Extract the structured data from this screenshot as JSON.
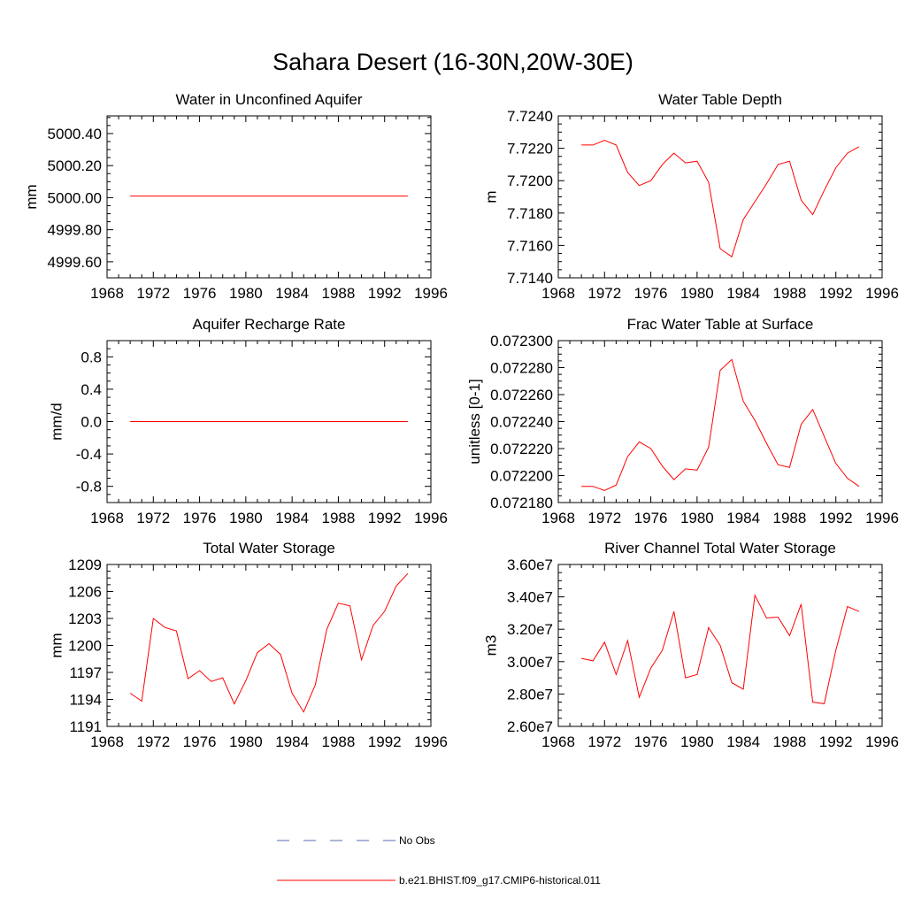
{
  "figure": {
    "title": "Sahara Desert (16-30N,20W-30E)",
    "colors": {
      "model": "#ff0000",
      "obs": "#5a6bb0",
      "axis": "#000000"
    },
    "legend": [
      {
        "label": "No Obs",
        "style": "dashed",
        "color": "#5a6bb0"
      },
      {
        "label": "b.e21.BHIST.f09_g17.CMIP6-historical.011",
        "style": "solid",
        "color": "#ff0000"
      }
    ]
  },
  "chart_data": [
    {
      "type": "line",
      "title": "Water in Unconfined Aquifer",
      "ylabel": "mm",
      "xlim": [
        1968,
        1996
      ],
      "xticks": [
        1968,
        1972,
        1976,
        1980,
        1984,
        1988,
        1992,
        1996
      ],
      "ylim": [
        4999.5,
        5000.51
      ],
      "yticks": [
        4999.6,
        4999.8,
        5000.0,
        5000.2,
        5000.4
      ],
      "ytick_labels": [
        "4999.60",
        "4999.80",
        "5000.00",
        "5000.20",
        "5000.40"
      ],
      "series": [
        {
          "name": "b.e21.BHIST.f09_g17.CMIP6-historical.011",
          "x": [
            1970,
            1971,
            1972,
            1973,
            1974,
            1975,
            1976,
            1977,
            1978,
            1979,
            1980,
            1981,
            1982,
            1983,
            1984,
            1985,
            1986,
            1987,
            1988,
            1989,
            1990,
            1991,
            1992,
            1993,
            1994
          ],
          "values": [
            5000.01,
            5000.01,
            5000.01,
            5000.01,
            5000.01,
            5000.01,
            5000.01,
            5000.01,
            5000.01,
            5000.01,
            5000.01,
            5000.01,
            5000.01,
            5000.01,
            5000.01,
            5000.01,
            5000.01,
            5000.01,
            5000.01,
            5000.01,
            5000.01,
            5000.01,
            5000.01,
            5000.01,
            5000.01
          ]
        }
      ]
    },
    {
      "type": "line",
      "title": "Water Table Depth",
      "ylabel": "m",
      "xlim": [
        1968,
        1996
      ],
      "xticks": [
        1968,
        1972,
        1976,
        1980,
        1984,
        1988,
        1992,
        1996
      ],
      "ylim": [
        7.714,
        7.724
      ],
      "yticks": [
        7.714,
        7.716,
        7.718,
        7.72,
        7.722,
        7.724
      ],
      "ytick_labels": [
        "7.7140",
        "7.7160",
        "7.7180",
        "7.7200",
        "7.7220",
        "7.7240"
      ],
      "series": [
        {
          "name": "b.e21.BHIST.f09_g17.CMIP6-historical.011",
          "x": [
            1970,
            1971,
            1972,
            1973,
            1974,
            1975,
            1976,
            1977,
            1978,
            1979,
            1980,
            1981,
            1982,
            1983,
            1984,
            1985,
            1986,
            1987,
            1988,
            1989,
            1990,
            1991,
            1992,
            1993,
            1994
          ],
          "values": [
            7.7222,
            7.7222,
            7.7225,
            7.7222,
            7.7205,
            7.7197,
            7.72,
            7.721,
            7.7217,
            7.7211,
            7.7212,
            7.7199,
            7.7158,
            7.7153,
            7.7176,
            7.7187,
            7.7198,
            7.721,
            7.7212,
            7.7188,
            7.7179,
            7.7194,
            7.7208,
            7.7217,
            7.7221
          ]
        }
      ]
    },
    {
      "type": "line",
      "title": "Aquifer Recharge Rate",
      "ylabel": "mm/d",
      "xlim": [
        1968,
        1996
      ],
      "xticks": [
        1968,
        1972,
        1976,
        1980,
        1984,
        1988,
        1992,
        1996
      ],
      "ylim": [
        -1.0,
        1.0
      ],
      "yticks": [
        -0.8,
        -0.4,
        0.0,
        0.4,
        0.8
      ],
      "ytick_labels": [
        "-0.8",
        "-0.4",
        "0.0",
        "0.4",
        "0.8"
      ],
      "series": [
        {
          "name": "b.e21.BHIST.f09_g17.CMIP6-historical.011",
          "x": [
            1970,
            1971,
            1972,
            1973,
            1974,
            1975,
            1976,
            1977,
            1978,
            1979,
            1980,
            1981,
            1982,
            1983,
            1984,
            1985,
            1986,
            1987,
            1988,
            1989,
            1990,
            1991,
            1992,
            1993,
            1994
          ],
          "values": [
            0,
            0,
            0,
            0,
            0,
            0,
            0,
            0,
            0,
            0,
            0,
            0,
            0,
            0,
            0,
            0,
            0,
            0,
            0,
            0,
            0,
            0,
            0,
            0,
            0
          ]
        }
      ]
    },
    {
      "type": "line",
      "title": "Frac Water Table at Surface",
      "ylabel": "unitless [0-1]",
      "xlim": [
        1968,
        1996
      ],
      "xticks": [
        1968,
        1972,
        1976,
        1980,
        1984,
        1988,
        1992,
        1996
      ],
      "ylim": [
        0.07218,
        0.0723
      ],
      "yticks": [
        0.07218,
        0.0722,
        0.07222,
        0.07224,
        0.07226,
        0.07228,
        0.0723
      ],
      "ytick_labels": [
        "0.072180",
        "0.072200",
        "0.072220",
        "0.072240",
        "0.072260",
        "0.072280",
        "0.072300"
      ],
      "series": [
        {
          "name": "b.e21.BHIST.f09_g17.CMIP6-historical.011",
          "x": [
            1970,
            1971,
            1972,
            1973,
            1974,
            1975,
            1976,
            1977,
            1978,
            1979,
            1980,
            1981,
            1982,
            1983,
            1984,
            1985,
            1986,
            1987,
            1988,
            1989,
            1990,
            1991,
            1992,
            1993,
            1994
          ],
          "values": [
            0.072192,
            0.072192,
            0.072189,
            0.072193,
            0.072214,
            0.072225,
            0.07222,
            0.072207,
            0.072197,
            0.072205,
            0.072204,
            0.072221,
            0.072278,
            0.072286,
            0.072255,
            0.072241,
            0.072224,
            0.072208,
            0.072206,
            0.072238,
            0.072249,
            0.072229,
            0.072209,
            0.072198,
            0.072192
          ]
        }
      ]
    },
    {
      "type": "line",
      "title": "Total Water Storage",
      "ylabel": "mm",
      "xlim": [
        1968,
        1996
      ],
      "xticks": [
        1968,
        1972,
        1976,
        1980,
        1984,
        1988,
        1992,
        1996
      ],
      "ylim": [
        1191,
        1209
      ],
      "yticks": [
        1191,
        1194,
        1197,
        1200,
        1203,
        1206,
        1209
      ],
      "ytick_labels": [
        "1191",
        "1194",
        "1197",
        "1200",
        "1203",
        "1206",
        "1209"
      ],
      "series": [
        {
          "name": "b.e21.BHIST.f09_g17.CMIP6-historical.011",
          "x": [
            1970,
            1971,
            1972,
            1973,
            1974,
            1975,
            1976,
            1977,
            1978,
            1979,
            1980,
            1981,
            1982,
            1983,
            1984,
            1985,
            1986,
            1987,
            1988,
            1989,
            1990,
            1991,
            1992,
            1993,
            1994
          ],
          "values": [
            1194.7,
            1193.8,
            1203.0,
            1202.0,
            1201.6,
            1196.3,
            1197.2,
            1196.0,
            1196.4,
            1193.5,
            1196.1,
            1199.2,
            1200.2,
            1199.0,
            1194.7,
            1192.6,
            1195.6,
            1201.8,
            1204.7,
            1204.4,
            1198.4,
            1202.2,
            1203.8,
            1206.6,
            1208.0
          ]
        }
      ]
    },
    {
      "type": "line",
      "title": "River Channel Total Water Storage",
      "ylabel": "m3",
      "xlim": [
        1968,
        1996
      ],
      "xticks": [
        1968,
        1972,
        1976,
        1980,
        1984,
        1988,
        1992,
        1996
      ],
      "ylim": [
        26000000,
        36000000
      ],
      "yticks": [
        26000000,
        28000000,
        30000000,
        32000000,
        34000000,
        36000000
      ],
      "ytick_labels": [
        "2.60e7",
        "2.80e7",
        "3.00e7",
        "3.20e7",
        "3.40e7",
        "3.60e7"
      ],
      "series": [
        {
          "name": "b.e21.BHIST.f09_g17.CMIP6-historical.011",
          "x": [
            1970,
            1971,
            1972,
            1973,
            1974,
            1975,
            1976,
            1977,
            1978,
            1979,
            1980,
            1981,
            1982,
            1983,
            1984,
            1985,
            1986,
            1987,
            1988,
            1989,
            1990,
            1991,
            1992,
            1993,
            1994
          ],
          "values": [
            30200000,
            30050000,
            31200000,
            29200000,
            31300000,
            27800000,
            29600000,
            30700000,
            33100000,
            29000000,
            29200000,
            32100000,
            31000000,
            28700000,
            28300000,
            34100000,
            32700000,
            32750000,
            31600000,
            33550000,
            27500000,
            27400000,
            30700000,
            33400000,
            33100000
          ]
        }
      ]
    }
  ]
}
